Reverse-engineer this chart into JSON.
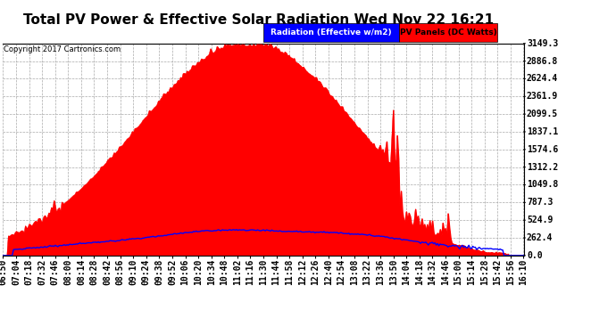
{
  "title": "Total PV Power & Effective Solar Radiation Wed Nov 22 16:21",
  "copyright": "Copyright 2017 Cartronics.com",
  "legend_radiation": "Radiation (Effective w/m2)",
  "legend_pv": "PV Panels (DC Watts)",
  "y_max": 3149.3,
  "y_ticks": [
    0.0,
    262.4,
    524.9,
    787.3,
    1049.8,
    1312.2,
    1574.6,
    1837.1,
    2099.5,
    2361.9,
    2624.4,
    2886.8,
    3149.3
  ],
  "x_labels": [
    "06:50",
    "07:04",
    "07:18",
    "07:32",
    "07:46",
    "08:00",
    "08:14",
    "08:28",
    "08:42",
    "08:56",
    "09:10",
    "09:24",
    "09:38",
    "09:52",
    "10:06",
    "10:20",
    "10:34",
    "10:48",
    "11:02",
    "11:16",
    "11:30",
    "11:44",
    "11:58",
    "12:12",
    "12:26",
    "12:40",
    "12:54",
    "13:08",
    "13:22",
    "13:36",
    "13:50",
    "14:04",
    "14:18",
    "14:32",
    "14:46",
    "15:00",
    "15:14",
    "15:28",
    "15:42",
    "15:56",
    "16:10"
  ],
  "background_color": "#ffffff",
  "plot_bg_color": "#ffffff",
  "grid_color": "#aaaaaa",
  "fill_color": "#ff0000",
  "line_color": "#0000ff",
  "title_fontsize": 11,
  "tick_fontsize": 7,
  "radiation_peak": 380,
  "pv_peak": 3149.3
}
